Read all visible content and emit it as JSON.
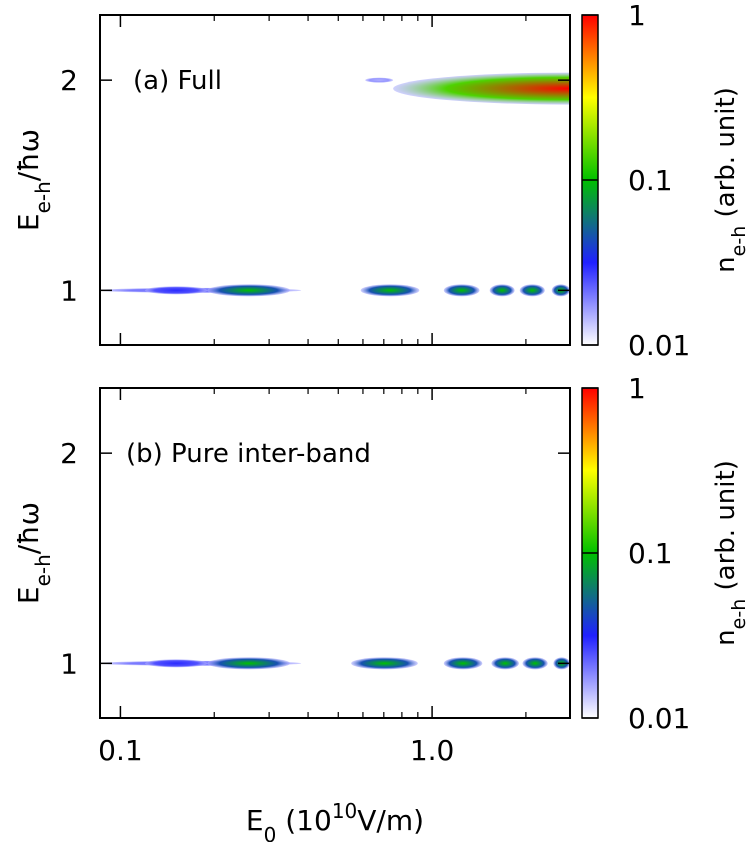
{
  "chart_data": [
    {
      "type": "heatmap",
      "panel_label": "(a) Full",
      "ylabel": "E",
      "ylabel_sub": "e-h",
      "ylabel_rest": "/ħω",
      "xlog": true,
      "xlim": [
        0.086,
        2.77
      ],
      "xticks": [
        0.1,
        1
      ],
      "xminorticks": [
        0.2,
        0.3,
        0.4,
        0.5,
        0.6,
        0.7,
        0.8,
        0.9,
        2
      ],
      "ylim": [
        0.74,
        2.31
      ],
      "yticks": [
        1,
        2
      ],
      "x_start": [
        0.086,
        0.12,
        0.19,
        0.59,
        1.09,
        1.53,
        1.91,
        2.42,
        0.61,
        0.75
      ],
      "x_end": [
        0.38,
        0.19,
        0.35,
        0.91,
        1.42,
        1.84,
        2.3,
        2.77,
        0.75,
        2.77
      ],
      "y": [
        1,
        1,
        1,
        1,
        1,
        1,
        1,
        1,
        2,
        1.96
      ],
      "values": [
        0.02,
        0.03,
        0.1,
        0.1,
        0.1,
        0.1,
        0.1,
        0.1,
        0.015,
        1
      ],
      "colorbar": {
        "log": true,
        "lim": [
          0.01,
          1
        ],
        "ticks": [
          0.01,
          0.1,
          1
        ],
        "label": "n",
        "label_sub": "e-h",
        "label_rest": " (arb. unit)"
      }
    },
    {
      "type": "heatmap",
      "panel_label": "(b) Pure inter-band",
      "ylabel": "E",
      "ylabel_sub": "e-h",
      "ylabel_rest": "/ħω",
      "xlabel": "E",
      "xlabel_sub": "0",
      "xlabel_rest": " (10",
      "xlabel_sup": "10",
      "xlabel_end": "V/m)",
      "xlog": true,
      "xlim": [
        0.086,
        2.77
      ],
      "xticks": [
        {
          "value": 0.1,
          "label": "0.1"
        },
        {
          "value": 1,
          "label": "1.0"
        }
      ],
      "xminorticks": [
        0.2,
        0.3,
        0.4,
        0.5,
        0.6,
        0.7,
        0.8,
        0.9,
        2
      ],
      "ylim": [
        0.74,
        2.31
      ],
      "yticks": [
        1,
        2
      ],
      "x_start": [
        0.086,
        0.12,
        0.19,
        0.55,
        1.09,
        1.55,
        1.95,
        2.45
      ],
      "x_end": [
        0.38,
        0.19,
        0.35,
        0.9,
        1.45,
        1.9,
        2.35,
        2.77
      ],
      "y": [
        1,
        1,
        1,
        1,
        1,
        1,
        1,
        1
      ],
      "values": [
        0.02,
        0.03,
        0.1,
        0.1,
        0.1,
        0.1,
        0.1,
        0.1
      ],
      "colorbar": {
        "log": true,
        "lim": [
          0.01,
          1
        ],
        "ticks": [
          0.01,
          0.1,
          1
        ],
        "label": "n",
        "label_sub": "e-h",
        "label_rest": " (arb. unit)"
      }
    }
  ]
}
